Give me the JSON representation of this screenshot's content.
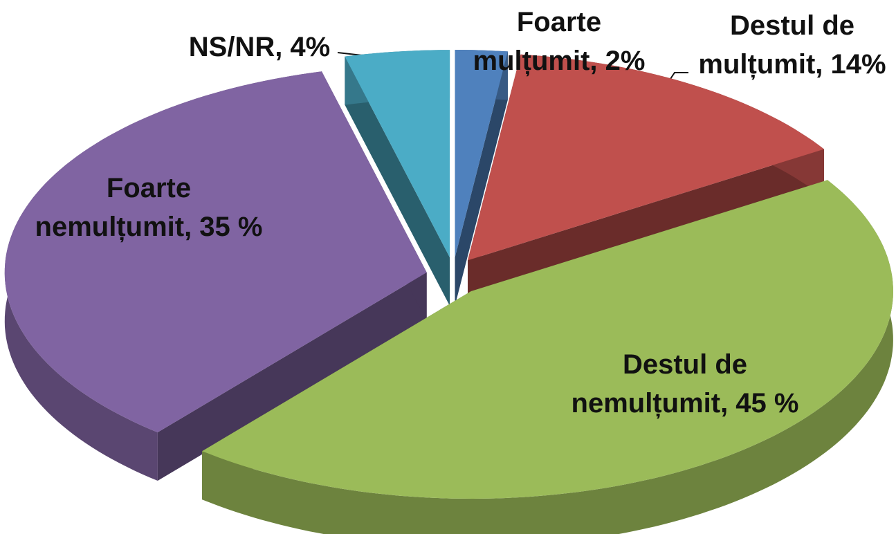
{
  "chart_data": {
    "type": "pie",
    "values": [
      2,
      14,
      45,
      35,
      4
    ],
    "value_labels": [
      "Foarte mulțumit, 2%",
      "Destul de mulțumit, 14%",
      "Destul de nemulțumit, 45 %",
      "Foarte nemulțumit, 35 %",
      "NS/NR, 4%"
    ],
    "colors": [
      "#4f81bd",
      "#c0504d",
      "#9bbb59",
      "#8064a2",
      "#4bacc6"
    ]
  }
}
